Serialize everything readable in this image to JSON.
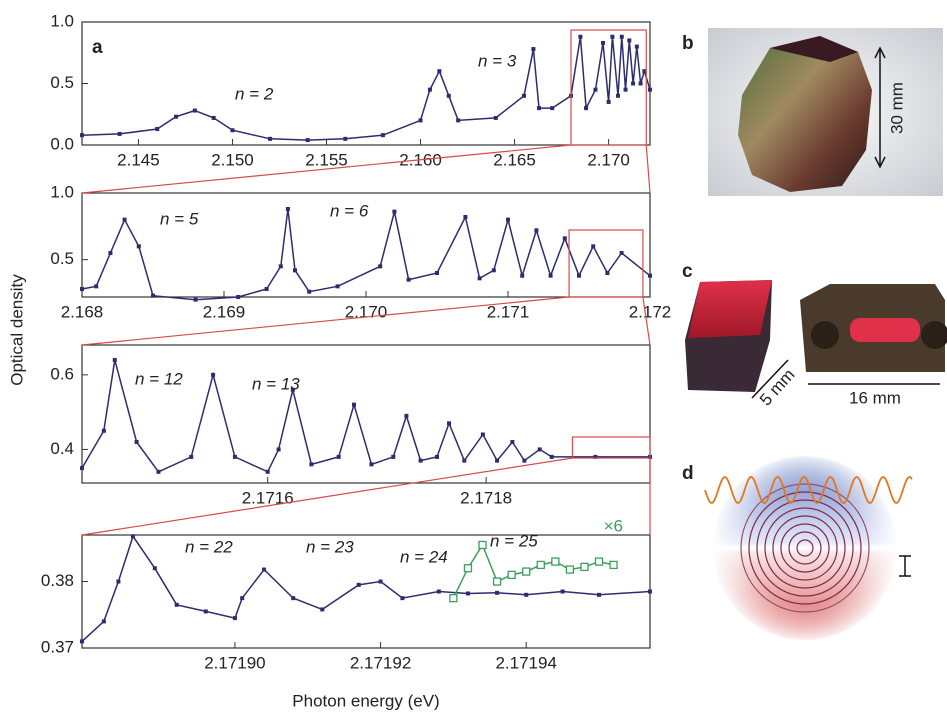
{
  "figure": {
    "panels": [
      "a",
      "b",
      "c",
      "d"
    ],
    "ylabel": "Optical density",
    "xlabel": "Photon energy (eV)",
    "dimensions": [
      "30 mm",
      "5 mm",
      "16 mm"
    ]
  },
  "chart_data": [
    {
      "type": "line",
      "xlim": [
        2.142,
        2.1722
      ],
      "ylim": [
        0,
        1
      ],
      "xticks": [
        2.145,
        {
          "value": 2.15,
          "label": "2.150"
        },
        2.155,
        {
          "value": 2.16,
          "label": "2.160"
        },
        2.165,
        {
          "value": 2.17,
          "label": "2.170"
        }
      ],
      "yticks": [
        {
          "value": 0,
          "label": "0.0"
        },
        0.5,
        {
          "value": 1,
          "label": "1.0"
        }
      ],
      "annotations": [
        "n = 2",
        "n = 3"
      ],
      "series": [
        {
          "color": "#2b2d6e",
          "marker": "filled",
          "x": [
            2.142,
            2.144,
            2.146,
            2.147,
            2.148,
            2.149,
            2.15,
            2.152,
            2.154,
            2.156,
            2.158,
            2.16,
            2.1605,
            2.161,
            2.1615,
            2.162,
            2.164,
            2.1655,
            2.166,
            2.1663,
            2.167,
            2.168,
            2.1685,
            2.1688,
            2.1693,
            2.1697,
            2.17,
            2.1702,
            2.1705,
            2.1707,
            2.1709,
            2.1711,
            2.1713,
            2.1715,
            2.1717,
            2.1719,
            2.1722
          ],
          "values": [
            0.08,
            0.09,
            0.13,
            0.23,
            0.28,
            0.22,
            0.12,
            0.05,
            0.04,
            0.05,
            0.08,
            0.2,
            0.45,
            0.6,
            0.4,
            0.2,
            0.22,
            0.4,
            0.78,
            0.3,
            0.3,
            0.4,
            0.88,
            0.3,
            0.45,
            0.83,
            0.35,
            0.88,
            0.4,
            0.88,
            0.45,
            0.85,
            0.5,
            0.8,
            0.5,
            0.6,
            0.45
          ]
        }
      ]
    },
    {
      "type": "line",
      "xlim": [
        2.168,
        2.172
      ],
      "ylim": [
        0.22,
        1
      ],
      "xticks": [
        2.168,
        2.169,
        {
          "value": 2.17,
          "label": "2.170"
        },
        2.171,
        2.172
      ],
      "yticks": [
        0.5,
        {
          "value": 1,
          "label": "1.0"
        }
      ],
      "annotations": [
        "n = 5",
        "n = 6"
      ],
      "series": [
        {
          "color": "#2b2d6e",
          "marker": "filled",
          "x": [
            2.168,
            2.1681,
            2.1682,
            2.1683,
            2.1684,
            2.1685,
            2.1688,
            2.1691,
            2.1693,
            2.1694,
            2.16945,
            2.1695,
            2.1696,
            2.1698,
            2.1701,
            2.1702,
            2.1703,
            2.1705,
            2.1707,
            2.1708,
            2.1709,
            2.171,
            2.1711,
            2.1712,
            2.1713,
            2.1714,
            2.1715,
            2.1716,
            2.1717,
            2.1718,
            2.172
          ],
          "values": [
            0.28,
            0.3,
            0.55,
            0.8,
            0.6,
            0.23,
            0.2,
            0.22,
            0.28,
            0.45,
            0.88,
            0.42,
            0.26,
            0.3,
            0.45,
            0.86,
            0.35,
            0.4,
            0.82,
            0.36,
            0.42,
            0.8,
            0.38,
            0.72,
            0.38,
            0.66,
            0.38,
            0.6,
            0.4,
            0.55,
            0.38
          ]
        }
      ]
    },
    {
      "type": "line",
      "xlim": [
        2.17143,
        2.17195
      ],
      "ylim": [
        0.31,
        0.68
      ],
      "xticks": [
        2.1716,
        2.1718
      ],
      "yticks": [
        0.4,
        0.6
      ],
      "annotations": [
        "n = 12",
        "n = 13"
      ],
      "series": [
        {
          "color": "#2b2d6e",
          "marker": "filled",
          "x": [
            2.17143,
            2.17145,
            2.17146,
            2.17148,
            2.1715,
            2.17153,
            2.17155,
            2.17157,
            2.1716,
            2.17161,
            2.171623,
            2.17164,
            2.171665,
            2.171679,
            2.171695,
            2.171715,
            2.171727,
            2.17174,
            2.171755,
            2.171766,
            2.17178,
            2.171797,
            2.17181,
            2.171824,
            2.171835,
            2.171849,
            2.17186,
            2.1719,
            2.17195
          ],
          "values": [
            0.35,
            0.45,
            0.64,
            0.42,
            0.34,
            0.38,
            0.6,
            0.38,
            0.34,
            0.4,
            0.56,
            0.36,
            0.38,
            0.52,
            0.36,
            0.38,
            0.49,
            0.37,
            0.38,
            0.47,
            0.37,
            0.44,
            0.37,
            0.42,
            0.37,
            0.4,
            0.38,
            0.38,
            0.38
          ]
        }
      ]
    },
    {
      "type": "line",
      "xlim": [
        2.171879,
        2.171957
      ],
      "ylim": [
        0.37,
        0.387
      ],
      "xticks": [
        {
          "value": 2.1719,
          "label": "2.17190"
        },
        2.17192,
        2.17194
      ],
      "yticks": [
        0.37,
        0.38
      ],
      "annotations": [
        "n = 22",
        "n = 23",
        "n = 24",
        "n = 25"
      ],
      "series": [
        {
          "color": "#2b2d6e",
          "marker": "filled",
          "x": [
            2.171879,
            2.171882,
            2.171884,
            2.171886,
            2.171889,
            2.171892,
            2.171896,
            2.1719,
            2.171901,
            2.171904,
            2.171908,
            2.171912,
            2.171917,
            2.17192,
            2.171923,
            2.171928,
            2.171932,
            2.171936,
            2.17194,
            2.171945,
            2.17195,
            2.171957
          ],
          "values": [
            0.371,
            0.374,
            0.38,
            0.3868,
            0.382,
            0.3765,
            0.3755,
            0.3745,
            0.3775,
            0.3818,
            0.3775,
            0.3758,
            0.3795,
            0.38,
            0.3775,
            0.3785,
            0.3782,
            0.3783,
            0.378,
            0.3785,
            0.378,
            0.3785
          ]
        },
        {
          "name": "×6",
          "color": "#3aa05a",
          "marker": "open",
          "x": [
            2.17193,
            2.171932,
            2.171934,
            2.171936,
            2.171938,
            2.17194,
            2.171942,
            2.171944,
            2.171946,
            2.171948,
            2.17195,
            2.171952
          ],
          "values": [
            0.3775,
            0.382,
            0.3855,
            0.38,
            0.381,
            0.3815,
            0.3825,
            0.383,
            0.3818,
            0.3822,
            0.383,
            0.3825
          ]
        }
      ]
    }
  ]
}
